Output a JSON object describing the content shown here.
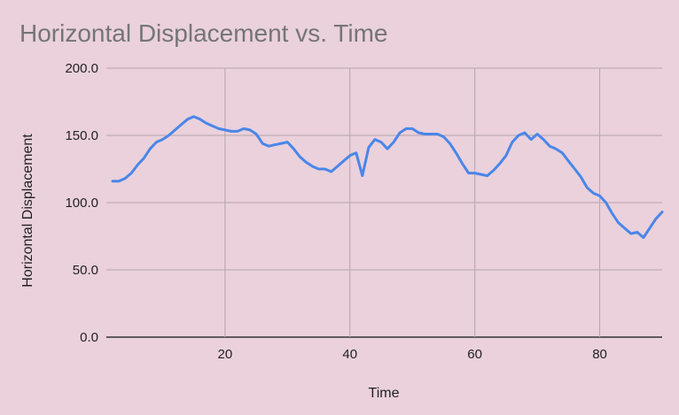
{
  "chart_data": {
    "type": "line",
    "title": "Horizontal Displacement vs. Time",
    "xlabel": "Time",
    "ylabel": "Horizontal Displacement",
    "xlim": [
      1,
      90
    ],
    "ylim": [
      0,
      200
    ],
    "xticks": [
      20,
      40,
      60,
      80
    ],
    "xtick_labels": [
      "20",
      "40",
      "60",
      "80"
    ],
    "yticks": [
      0,
      50,
      100,
      150,
      200
    ],
    "ytick_labels": [
      "0.0",
      "50.0",
      "100.0",
      "150.0",
      "200.0"
    ],
    "grid": true,
    "legend": "none",
    "series": [
      {
        "color": "#4a86e8",
        "x": [
          2,
          3,
          4,
          5,
          6,
          7,
          8,
          9,
          10,
          11,
          12,
          13,
          14,
          15,
          16,
          17,
          18,
          19,
          20,
          21,
          22,
          23,
          24,
          25,
          26,
          27,
          28,
          29,
          30,
          31,
          32,
          33,
          34,
          35,
          36,
          37,
          38,
          39,
          40,
          41,
          42,
          43,
          44,
          45,
          46,
          47,
          48,
          49,
          50,
          51,
          52,
          53,
          54,
          55,
          56,
          57,
          58,
          59,
          60,
          61,
          62,
          63,
          64,
          65,
          66,
          67,
          68,
          69,
          70,
          71,
          72,
          73,
          74,
          75,
          76,
          77,
          78,
          79,
          80,
          81,
          82,
          83,
          84,
          85,
          86,
          87,
          88,
          89,
          90
        ],
        "y": [
          116,
          116,
          118,
          122,
          128,
          133,
          140,
          145,
          147,
          150,
          154,
          158,
          162,
          164,
          162,
          159,
          157,
          155,
          154,
          153,
          153,
          155,
          154,
          151,
          144,
          142,
          143,
          144,
          145,
          140,
          134,
          130,
          127,
          125,
          125,
          123,
          127,
          131,
          135,
          137,
          120,
          141,
          147,
          145,
          140,
          145,
          152,
          155,
          155,
          152,
          151,
          151,
          151,
          149,
          144,
          137,
          129,
          122,
          122,
          121,
          120,
          124,
          129,
          135,
          145,
          150,
          152,
          147,
          151,
          147,
          142,
          140,
          137,
          131,
          125,
          119,
          111,
          107,
          105,
          100,
          92,
          85,
          81,
          77,
          78,
          74,
          81,
          88,
          93
        ]
      }
    ]
  }
}
